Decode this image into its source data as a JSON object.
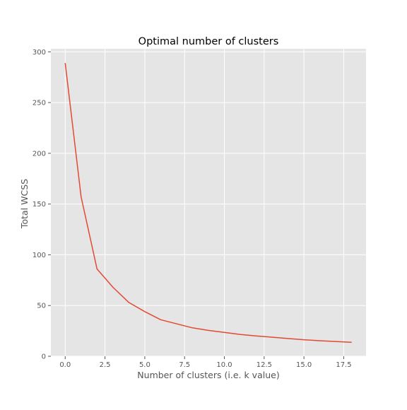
{
  "chart_data": {
    "type": "line",
    "title": "Optimal number of clusters",
    "xlabel": "Number of clusters (i.e. k value)",
    "ylabel": "Total WCSS",
    "xlim": [
      -0.9,
      18.9
    ],
    "ylim": [
      0,
      303
    ],
    "xticks": [
      "0.0",
      "2.5",
      "5.0",
      "7.5",
      "10.0",
      "12.5",
      "15.0",
      "17.5"
    ],
    "yticks": [
      "0",
      "50",
      "100",
      "150",
      "200",
      "250",
      "300"
    ],
    "grid": true,
    "style": {
      "background": "#e5e5e5",
      "grid_color": "#ffffff",
      "line_color": "#e24a33"
    },
    "x": [
      0,
      1,
      2,
      3,
      4,
      5,
      6,
      7,
      8,
      9,
      10,
      11,
      12,
      13,
      14,
      15,
      16,
      17,
      18
    ],
    "series": [
      {
        "values": [
          289,
          157,
          86,
          68,
          53,
          44,
          36,
          32,
          28,
          25.5,
          23.5,
          21.5,
          20,
          18.8,
          17.5,
          16.3,
          15.3,
          14.5,
          13.8
        ]
      }
    ]
  }
}
